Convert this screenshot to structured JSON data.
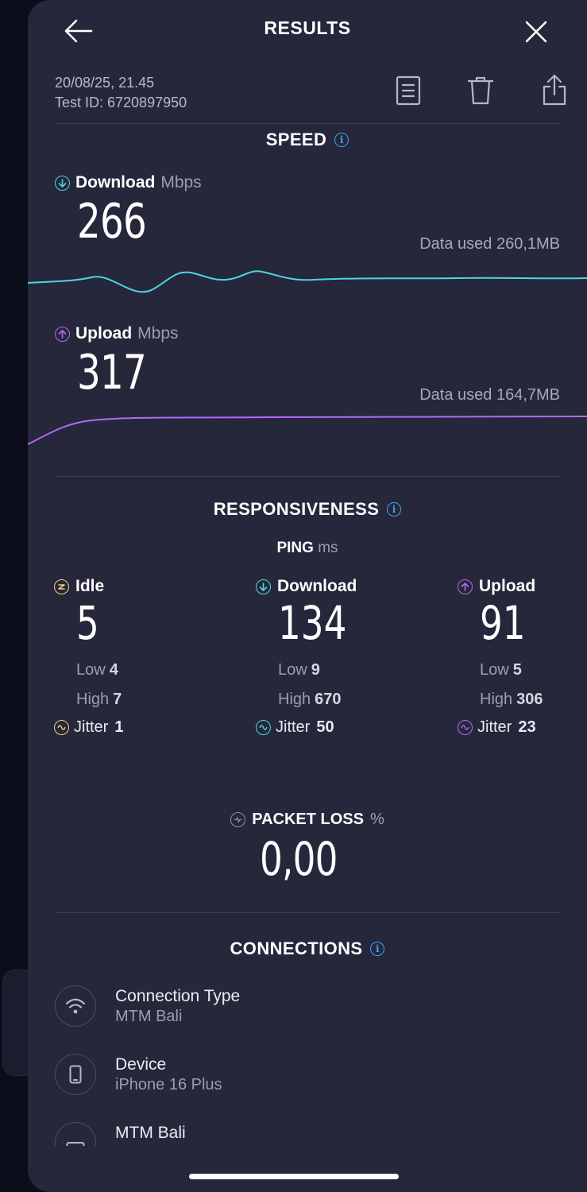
{
  "header": {
    "title": "RESULTS",
    "date": "20/08/25, 21.45",
    "test_id": "Test ID: 6720897950"
  },
  "speed": {
    "section_title": "SPEED",
    "download": {
      "label": "Download",
      "unit": "Mbps",
      "value": "266",
      "data_used": "Data used 260,1MB",
      "color": "#4fd6de"
    },
    "upload": {
      "label": "Upload",
      "unit": "Mbps",
      "value": "317",
      "data_used": "Data used 164,7MB",
      "color": "#b469f4"
    }
  },
  "responsiveness": {
    "section_title": "RESPONSIVENESS",
    "ping_label": "PING",
    "ping_unit": "ms",
    "columns": [
      {
        "label": "Idle",
        "value": "5",
        "low_label": "Low",
        "low": "4",
        "high_label": "High",
        "high": "7",
        "jitter_label": "Jitter",
        "jitter": "1",
        "color": "#f3d27a",
        "icon": "idle-icon"
      },
      {
        "label": "Download",
        "value": "134",
        "low_label": "Low",
        "low": "9",
        "high_label": "High",
        "high": "670",
        "jitter_label": "Jitter",
        "jitter": "50",
        "color": "#4fd6de",
        "icon": "download-arrow-icon"
      },
      {
        "label": "Upload",
        "value": "91",
        "low_label": "Low",
        "low": "5",
        "high_label": "High",
        "high": "306",
        "jitter_label": "Jitter",
        "jitter": "23",
        "color": "#b469f4",
        "icon": "upload-arrow-icon"
      }
    ],
    "packet_loss": {
      "label": "PACKET LOSS",
      "unit": "%",
      "value": "0,00"
    }
  },
  "connections": {
    "section_title": "CONNECTIONS",
    "items": [
      {
        "title": "Connection Type",
        "subtitle": "MTM Bali",
        "icon": "wifi-icon"
      },
      {
        "title": "Device",
        "subtitle": "iPhone 16 Plus",
        "icon": "phone-icon"
      },
      {
        "title": "MTM Bali",
        "subtitle": "",
        "icon": "server-icon"
      }
    ]
  },
  "colors": {
    "background": "#26273b",
    "accent_info": "#3ba3f1"
  }
}
